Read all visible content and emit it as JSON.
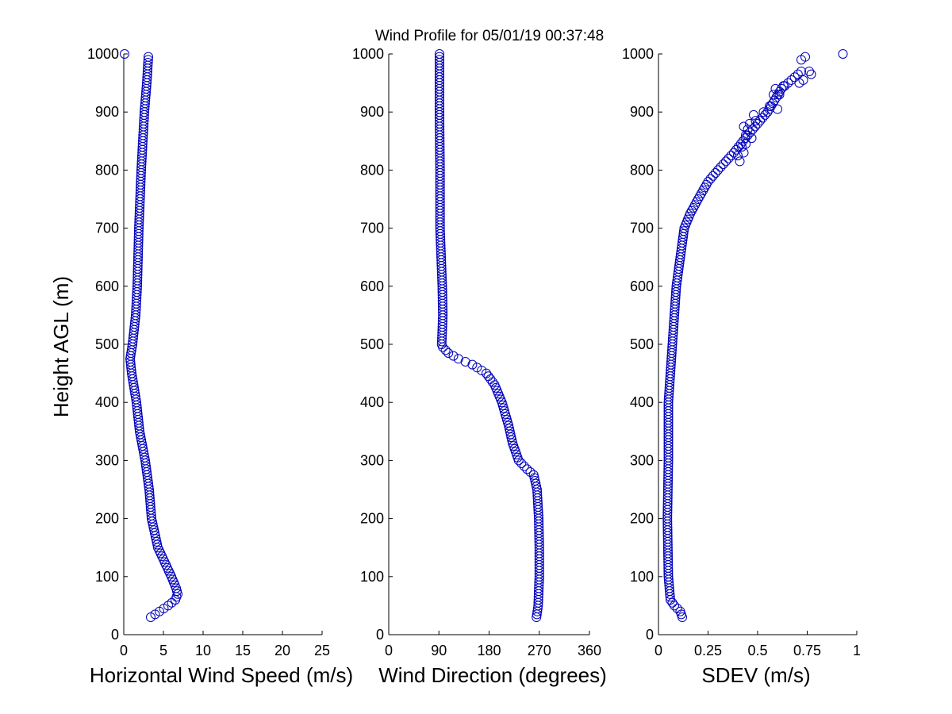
{
  "title": "Wind Profile for  05/01/19 00:37:48",
  "ylabel": "Height AGL (m)",
  "chart_data": [
    {
      "type": "scatter",
      "name": "speed",
      "xlabel": "Horizontal Wind Speed (m/s)",
      "ylabel": "Height AGL (m)",
      "xlim": [
        0,
        25
      ],
      "ylim": [
        0,
        1000
      ],
      "xticks": [
        0,
        5,
        10,
        15,
        20,
        25
      ],
      "xtick_labels": [
        "0",
        "5",
        "10",
        "15",
        "20",
        "25"
      ],
      "yticks": [
        0,
        100,
        200,
        300,
        400,
        500,
        600,
        700,
        800,
        900,
        1000
      ],
      "ytick_labels": [
        "0",
        "100",
        "200",
        "300",
        "400",
        "500",
        "600",
        "700",
        "800",
        "900",
        "1000"
      ],
      "profile": [
        [
          30,
          3.4
        ],
        [
          40,
          4.5
        ],
        [
          50,
          5.6
        ],
        [
          60,
          6.5
        ],
        [
          70,
          6.8
        ],
        [
          80,
          6.6
        ],
        [
          100,
          6.0
        ],
        [
          150,
          4.3
        ],
        [
          200,
          3.5
        ],
        [
          250,
          3.2
        ],
        [
          300,
          2.7
        ],
        [
          350,
          2.0
        ],
        [
          400,
          1.6
        ],
        [
          450,
          1.0
        ],
        [
          475,
          0.8
        ],
        [
          500,
          1.1
        ],
        [
          550,
          1.5
        ],
        [
          600,
          1.7
        ],
        [
          700,
          1.9
        ],
        [
          800,
          2.2
        ],
        [
          900,
          2.6
        ],
        [
          950,
          2.9
        ],
        [
          995,
          3.1
        ]
      ],
      "extra_points": [
        [
          0.1,
          1000
        ]
      ]
    },
    {
      "type": "scatter",
      "name": "direction",
      "xlabel": "Wind Direction (degrees)",
      "xlim": [
        0,
        360
      ],
      "ylim": [
        0,
        1000
      ],
      "xticks": [
        0,
        90,
        180,
        270,
        360
      ],
      "xtick_labels": [
        "0",
        "90",
        "180",
        "270",
        "360"
      ],
      "yticks": [
        0,
        100,
        200,
        300,
        400,
        500,
        600,
        700,
        800,
        900,
        1000
      ],
      "ytick_labels": [
        "0",
        "100",
        "200",
        "300",
        "400",
        "500",
        "600",
        "700",
        "800",
        "900",
        "1000"
      ],
      "profile": [
        [
          30,
          265
        ],
        [
          50,
          268
        ],
        [
          100,
          270
        ],
        [
          150,
          270
        ],
        [
          200,
          269
        ],
        [
          250,
          266
        ],
        [
          275,
          260
        ],
        [
          285,
          248
        ],
        [
          300,
          233
        ],
        [
          330,
          222
        ],
        [
          360,
          215
        ],
        [
          400,
          203
        ],
        [
          430,
          190
        ],
        [
          450,
          175
        ],
        [
          465,
          150
        ],
        [
          475,
          125
        ],
        [
          485,
          107
        ],
        [
          495,
          97
        ],
        [
          500,
          95
        ],
        [
          550,
          97
        ],
        [
          600,
          96
        ],
        [
          700,
          92
        ],
        [
          800,
          92
        ],
        [
          900,
          91
        ],
        [
          1000,
          91
        ]
      ]
    },
    {
      "type": "scatter",
      "name": "sdev",
      "xlabel": "SDEV  (m/s)",
      "xlim": [
        0,
        1
      ],
      "ylim": [
        0,
        1000
      ],
      "xticks": [
        0,
        0.25,
        0.5,
        0.75,
        1
      ],
      "xtick_labels": [
        "0",
        "0.25",
        "0.5",
        "0.75",
        "1"
      ],
      "yticks": [
        0,
        100,
        200,
        300,
        400,
        500,
        600,
        700,
        800,
        900,
        1000
      ],
      "ytick_labels": [
        "0",
        "100",
        "200",
        "300",
        "400",
        "500",
        "600",
        "700",
        "800",
        "900",
        "1000"
      ],
      "profile": [
        [
          30,
          0.12
        ],
        [
          40,
          0.11
        ],
        [
          50,
          0.08
        ],
        [
          60,
          0.06
        ],
        [
          100,
          0.05
        ],
        [
          200,
          0.045
        ],
        [
          300,
          0.05
        ],
        [
          400,
          0.05
        ],
        [
          450,
          0.06
        ],
        [
          500,
          0.07
        ],
        [
          550,
          0.08
        ],
        [
          600,
          0.09
        ],
        [
          650,
          0.11
        ],
        [
          700,
          0.13
        ],
        [
          725,
          0.16
        ],
        [
          750,
          0.2
        ],
        [
          780,
          0.25
        ],
        [
          800,
          0.3
        ],
        [
          830,
          0.38
        ],
        [
          860,
          0.45
        ],
        [
          900,
          0.55
        ],
        [
          940,
          0.62
        ],
        [
          970,
          0.72
        ]
      ],
      "extra_points": [
        [
          0.72,
          990
        ],
        [
          0.74,
          995
        ],
        [
          0.71,
          950
        ],
        [
          0.73,
          955
        ],
        [
          0.77,
          965
        ],
        [
          0.76,
          970
        ],
        [
          0.63,
          945
        ],
        [
          0.59,
          940
        ],
        [
          0.58,
          930
        ],
        [
          0.61,
          930
        ],
        [
          0.6,
          905
        ],
        [
          0.56,
          910
        ],
        [
          0.53,
          900
        ],
        [
          0.48,
          895
        ],
        [
          0.49,
          885
        ],
        [
          0.46,
          880
        ],
        [
          0.45,
          870
        ],
        [
          0.43,
          875
        ],
        [
          0.44,
          860
        ],
        [
          0.47,
          855
        ],
        [
          0.44,
          845
        ],
        [
          0.42,
          840
        ],
        [
          0.43,
          830
        ],
        [
          0.4,
          825
        ],
        [
          0.41,
          815
        ],
        [
          0.93,
          1000
        ]
      ]
    }
  ]
}
